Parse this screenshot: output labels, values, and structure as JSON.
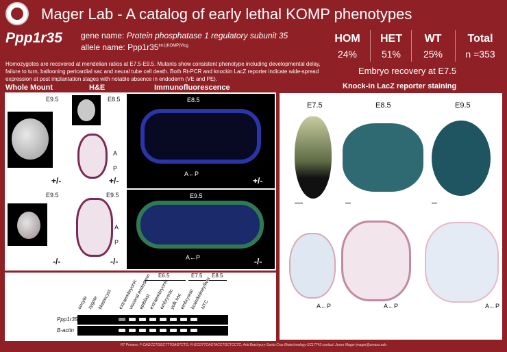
{
  "header": {
    "title": "Mager Lab - A catalog of early lethal KOMP phenotypes"
  },
  "gene": {
    "symbol": "Ppp1r35",
    "gene_name_label": "gene name:",
    "gene_name": "Protein phosphatase 1 regulatory subunit 35",
    "allele_label": "allele name:",
    "allele_base": "Ppp1r35",
    "allele_sup": "tm1(KOMP)Vlcg"
  },
  "stats": {
    "hom_label": "HOM",
    "hom_value": "24%",
    "het_label": "HET",
    "het_value": "51%",
    "wt_label": "WT",
    "wt_value": "25%",
    "total_label": "Total",
    "total_value": "n =353",
    "recovery": "Embryo recovery at E7.5"
  },
  "summary": "Homozygotes are recovered at mendelian ratios at E7.5-E9.5.  Mutants show consistent phenotype including developmental delay, failure to turn, ballooning pericardial sac and neural tube cell death. Both Rt-PCR and knockin LacZ reporter indicate wide-spread expression at post implantation stages with notable absence in endoderm (VE and PE).",
  "sections": {
    "whole_mount": "Whole Mount",
    "he": "H&E",
    "if": "Immunofluorescence",
    "lacz": "Knock-in LacZ reporter staining"
  },
  "panels": {
    "wm_top_stage": "E9.5",
    "wm_top_geno": "+/-",
    "wm_bot_stage": "E9.5",
    "wm_bot_geno": "-/-",
    "he_top_stage": "E8.5",
    "he_top_geno": "+/-",
    "he_bot_stage": "E9.5",
    "he_bot_geno": "-/-",
    "if_top_stage": "E8.5",
    "if_top_geno": "+/-",
    "if_bot_stage": "E9.5",
    "if_bot_geno": "-/-",
    "axis_a": "A",
    "axis_p": "P",
    "axis_label": "A←P"
  },
  "lacz": {
    "stages": [
      "E7.5",
      "E8.5",
      "E9.5"
    ],
    "axis_1": "A←P",
    "axis_2": "A←P",
    "axis_3": "A←P"
  },
  "gel": {
    "stage_groups": [
      "E6.5",
      "E7.5",
      "E8.5"
    ],
    "lanes": [
      "oocyte",
      "zygote",
      "blastocyst",
      "extraembryonic",
      "visceral endoderm",
      "epiblast",
      "extraembryonic",
      "embryonic",
      "yolk sac",
      "embryonic",
      "brain/kidney/liver",
      "NTC"
    ],
    "rows": [
      "Ppp1r35",
      "B-actin"
    ]
  },
  "footer": "RT Primers: F-CAGCCTGGCTTTGAGTCTG, R-GCGTTCAGTACCTGCTCCTC; Anti Brachyury-Santa Cruz Biotechnology-SC17743 contact: Jesse Mager jmager@umass.edu"
}
